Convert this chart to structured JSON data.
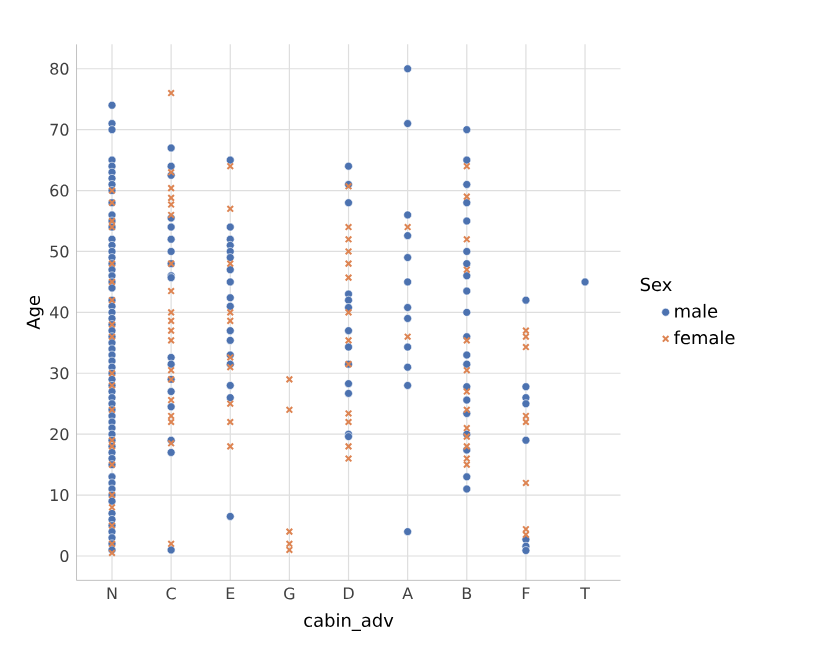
{
  "chart_data": {
    "type": "scatter",
    "xlabel": "cabin_adv",
    "ylabel": "Age",
    "legend_title": "Sex",
    "categories": [
      "N",
      "C",
      "E",
      "G",
      "D",
      "A",
      "B",
      "F",
      "T"
    ],
    "ylim": [
      -4,
      84
    ],
    "yticks": [
      0,
      10,
      20,
      30,
      40,
      50,
      60,
      70,
      80
    ],
    "grid": true,
    "legend": "right",
    "series": [
      {
        "name": "male",
        "color": "#4c72b0",
        "marker": "circle",
        "x": [
          "N",
          "N",
          "N",
          "N",
          "N",
          "N",
          "N",
          "N",
          "N",
          "N",
          "N",
          "N",
          "N",
          "N",
          "N",
          "N",
          "N",
          "N",
          "N",
          "N",
          "N",
          "N",
          "N",
          "N",
          "N",
          "N",
          "N",
          "N",
          "N",
          "N",
          "N",
          "N",
          "N",
          "N",
          "N",
          "N",
          "N",
          "N",
          "N",
          "N",
          "N",
          "N",
          "N",
          "N",
          "N",
          "N",
          "N",
          "N",
          "N",
          "N",
          "N",
          "N",
          "N",
          "N",
          "N",
          "N",
          "N",
          "N",
          "N",
          "N",
          "N",
          "N",
          "C",
          "C",
          "C",
          "C",
          "C",
          "C",
          "C",
          "C",
          "C",
          "C",
          "C",
          "C",
          "C",
          "C",
          "C",
          "C",
          "C",
          "C",
          "E",
          "E",
          "E",
          "E",
          "E",
          "E",
          "E",
          "E",
          "E",
          "E",
          "E",
          "E",
          "E",
          "E",
          "E",
          "E",
          "E",
          "D",
          "D",
          "D",
          "D",
          "D",
          "D",
          "D",
          "D",
          "D",
          "D",
          "D",
          "D",
          "D",
          "A",
          "A",
          "A",
          "A",
          "A",
          "A",
          "A",
          "A",
          "A",
          "A",
          "A",
          "A",
          "B",
          "B",
          "B",
          "B",
          "B",
          "B",
          "B",
          "B",
          "B",
          "B",
          "B",
          "B",
          "B",
          "B",
          "B",
          "B",
          "B",
          "B",
          "B",
          "B",
          "F",
          "F",
          "F",
          "F",
          "F",
          "F",
          "F",
          "F",
          "T"
        ],
        "values": [
          74,
          71,
          70,
          65,
          64,
          63,
          62,
          61,
          60,
          58,
          56,
          55,
          54,
          52,
          51,
          50,
          49,
          48,
          47,
          46,
          45,
          44,
          42,
          41,
          40,
          39,
          38,
          37,
          36,
          35,
          34,
          33,
          32,
          31,
          30,
          29,
          28,
          27,
          26,
          25,
          24,
          23,
          22,
          21,
          20,
          19,
          18,
          17,
          16,
          15,
          13,
          12,
          11,
          10,
          9,
          7,
          6,
          5,
          4,
          3,
          2,
          1,
          67,
          64,
          62.5,
          55.5,
          54,
          52,
          50,
          48,
          46,
          45.7,
          32.6,
          31.5,
          29,
          27,
          24.5,
          19,
          17,
          1,
          65,
          54,
          52,
          51,
          50,
          49,
          47,
          45,
          42.4,
          41,
          37,
          35.4,
          33,
          31.5,
          28,
          26,
          6.5,
          64,
          61,
          58,
          43,
          42,
          40.8,
          37,
          34.3,
          31.5,
          28.3,
          26.7,
          20,
          19.6,
          80,
          71,
          56,
          52.6,
          49,
          45,
          40.8,
          39,
          34.3,
          31,
          28,
          4,
          70,
          65,
          61,
          58,
          55,
          50,
          48,
          46,
          43.5,
          40,
          36,
          33,
          31.5,
          27.8,
          25.6,
          23.4,
          20,
          17.4,
          13,
          11,
          42,
          27.8,
          26,
          25,
          19,
          2.7,
          1.6,
          0.9,
          45
        ]
      },
      {
        "name": "female",
        "color": "#dd8452",
        "marker": "cross",
        "x": [
          "N",
          "N",
          "N",
          "N",
          "N",
          "N",
          "N",
          "N",
          "N",
          "N",
          "N",
          "N",
          "N",
          "N",
          "N",
          "N",
          "N",
          "N",
          "N",
          "N",
          "C",
          "C",
          "C",
          "C",
          "C",
          "C",
          "C",
          "C",
          "C",
          "C",
          "C",
          "C",
          "C",
          "C",
          "C",
          "C",
          "C",
          "C",
          "C",
          "E",
          "E",
          "E",
          "E",
          "E",
          "E",
          "E",
          "E",
          "E",
          "E",
          "G",
          "G",
          "G",
          "G",
          "G",
          "D",
          "D",
          "D",
          "D",
          "D",
          "D",
          "D",
          "D",
          "D",
          "D",
          "D",
          "D",
          "D",
          "A",
          "A",
          "B",
          "B",
          "B",
          "B",
          "B",
          "B",
          "B",
          "B",
          "B",
          "B",
          "B",
          "B",
          "B",
          "F",
          "F",
          "F",
          "F",
          "F",
          "F",
          "F",
          "F"
        ],
        "values": [
          60,
          58,
          55,
          54,
          48,
          45,
          42,
          38,
          36,
          30,
          28,
          24,
          19,
          18,
          15,
          10,
          8,
          5,
          2,
          0.5,
          76,
          63,
          60.4,
          58.8,
          57.7,
          56,
          48,
          43.5,
          40,
          38.6,
          37,
          35.4,
          30.5,
          29,
          25.6,
          23,
          22,
          18.5,
          2,
          64,
          57,
          48,
          40,
          38.6,
          32.6,
          31,
          25,
          22,
          18,
          29,
          24,
          4,
          2,
          1,
          60.7,
          54,
          52,
          50,
          48,
          45.7,
          40,
          35.4,
          31.5,
          23.4,
          22,
          18,
          16,
          54,
          36,
          64,
          59,
          52,
          47,
          35.4,
          30.5,
          27,
          24,
          21,
          19.6,
          18,
          16,
          15,
          37,
          36,
          34.3,
          23,
          22,
          12,
          4.4,
          3.5
        ]
      }
    ]
  }
}
